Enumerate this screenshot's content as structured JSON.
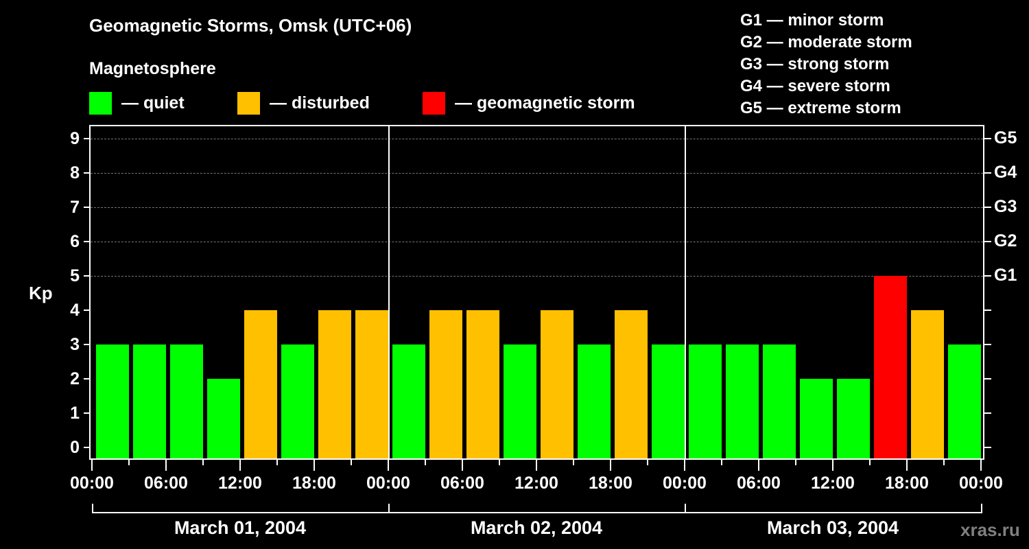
{
  "header": {
    "title": "Geomagnetic Storms, Omsk (UTC+06)",
    "subtitle": "Magnetosphere"
  },
  "legend": [
    {
      "label": "— quiet",
      "color": "#00ff00"
    },
    {
      "label": "— disturbed",
      "color": "#ffc000"
    },
    {
      "label": "— geomagnetic storm",
      "color": "#ff0000"
    }
  ],
  "storm_scale": [
    "G1 — minor storm",
    "G2 — moderate storm",
    "G3 — strong storm",
    "G4 — severe storm",
    "G5 — extreme storm"
  ],
  "credit": "xras.ru",
  "chart_data": {
    "type": "bar",
    "title": "Geomagnetic Storms, Omsk (UTC+06)",
    "subtitle": "Magnetosphere",
    "xlabel": "",
    "ylabel": "Kp",
    "ylim": [
      0,
      9
    ],
    "y_ticks": [
      0,
      1,
      2,
      3,
      4,
      5,
      6,
      7,
      8,
      9
    ],
    "y2_ticks": [
      {
        "kp": 5,
        "label": "G1"
      },
      {
        "kp": 6,
        "label": "G2"
      },
      {
        "kp": 7,
        "label": "G3"
      },
      {
        "kp": 8,
        "label": "G4"
      },
      {
        "kp": 9,
        "label": "G5"
      }
    ],
    "grid": "dashed horizontal at Kp 5-9",
    "x_tick_labels": [
      "00:00",
      "06:00",
      "12:00",
      "18:00",
      "00:00",
      "06:00",
      "12:00",
      "18:00",
      "00:00",
      "06:00",
      "12:00",
      "18:00",
      "00:00"
    ],
    "days": [
      "March 01, 2004",
      "March 02, 2004",
      "March 03, 2004"
    ],
    "interval_hours": 3,
    "categories": [
      "Mar01 00-03",
      "Mar01 03-06",
      "Mar01 06-09",
      "Mar01 09-12",
      "Mar01 12-15",
      "Mar01 15-18",
      "Mar01 18-21",
      "Mar01 21-24",
      "Mar02 00-03",
      "Mar02 03-06",
      "Mar02 06-09",
      "Mar02 09-12",
      "Mar02 12-15",
      "Mar02 15-18",
      "Mar02 18-21",
      "Mar02 21-24",
      "Mar03 00-03",
      "Mar03 03-06",
      "Mar03 06-09",
      "Mar03 09-12",
      "Mar03 12-15",
      "Mar03 15-18",
      "Mar03 18-21",
      "Mar03 21-24"
    ],
    "values": [
      3,
      3,
      3,
      2,
      4,
      3,
      4,
      4,
      3,
      4,
      4,
      3,
      4,
      3,
      4,
      3,
      3,
      3,
      3,
      2,
      2,
      5,
      4,
      3
    ],
    "status": [
      "quiet",
      "quiet",
      "quiet",
      "quiet",
      "disturbed",
      "quiet",
      "disturbed",
      "disturbed",
      "quiet",
      "disturbed",
      "disturbed",
      "quiet",
      "disturbed",
      "quiet",
      "disturbed",
      "quiet",
      "quiet",
      "quiet",
      "quiet",
      "quiet",
      "quiet",
      "storm",
      "disturbed",
      "quiet"
    ],
    "colors": {
      "quiet": "#00ff00",
      "disturbed": "#ffc000",
      "storm": "#ff0000"
    }
  }
}
